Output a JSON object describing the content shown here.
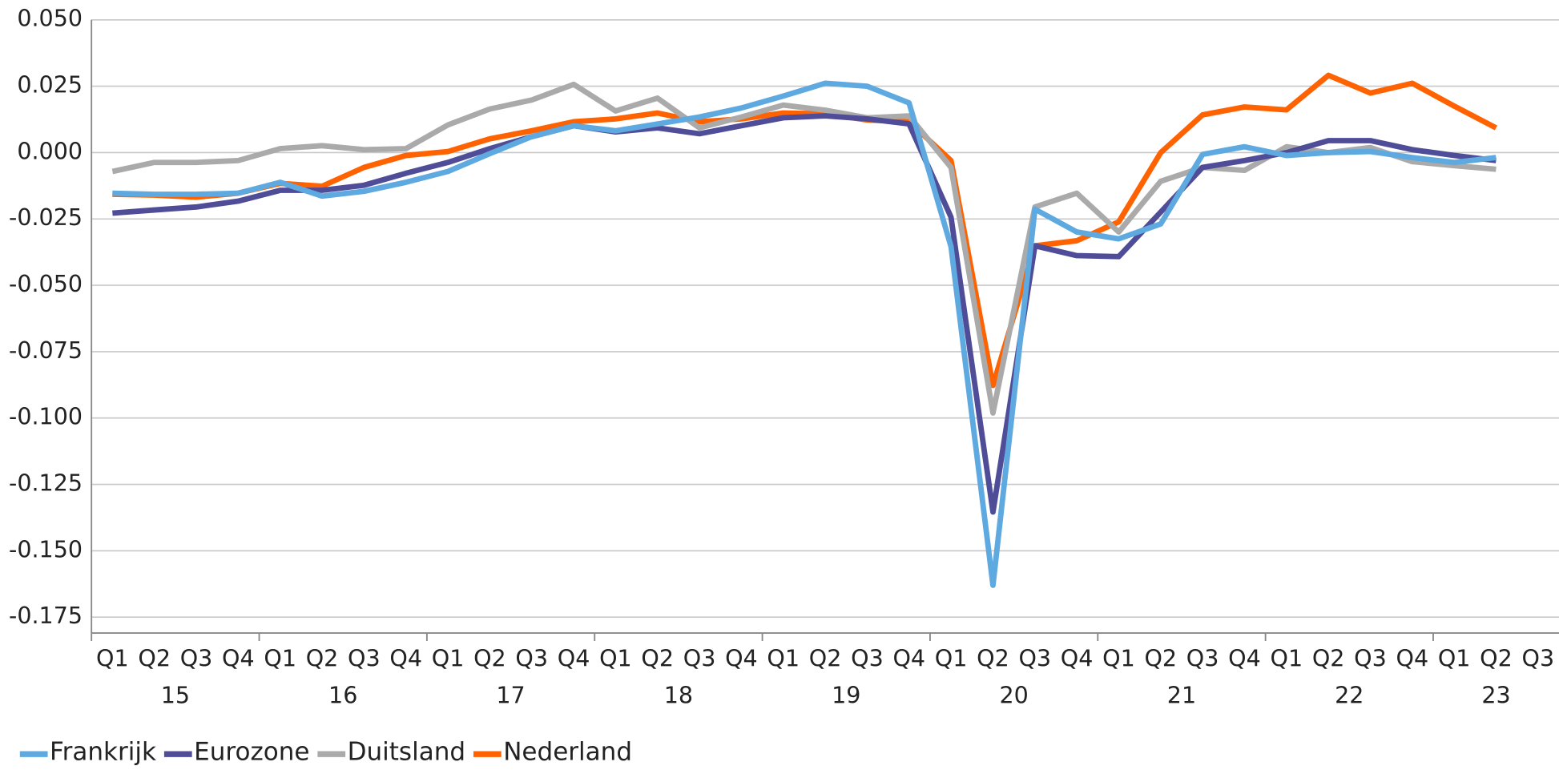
{
  "chart_data": {
    "type": "line",
    "categories": [
      "Q1",
      "Q2",
      "Q3",
      "Q4",
      "Q1",
      "Q2",
      "Q3",
      "Q4",
      "Q1",
      "Q2",
      "Q3",
      "Q4",
      "Q1",
      "Q2",
      "Q3",
      "Q4",
      "Q1",
      "Q2",
      "Q3",
      "Q4",
      "Q1",
      "Q2",
      "Q3",
      "Q4",
      "Q1",
      "Q2",
      "Q3",
      "Q4",
      "Q1",
      "Q2",
      "Q3",
      "Q4",
      "Q1",
      "Q2",
      "Q3"
    ],
    "year_groups": [
      "15",
      "16",
      "17",
      "18",
      "19",
      "20",
      "21",
      "22",
      "23"
    ],
    "ylim": [
      -0.181,
      0.05
    ],
    "yticks": [
      {
        "value": 0.05,
        "label": "0.050"
      },
      {
        "value": 0.025,
        "label": "0.025"
      },
      {
        "value": 0,
        "label": "0.000"
      },
      {
        "value": -0.025,
        "label": "-0.025"
      },
      {
        "value": -0.05,
        "label": "-0.050"
      },
      {
        "value": -0.075,
        "label": "-0.075"
      },
      {
        "value": -0.1,
        "label": "-0.100"
      },
      {
        "value": -0.125,
        "label": "-0.125"
      },
      {
        "value": -0.15,
        "label": "-0.150"
      },
      {
        "value": -0.175,
        "label": "-0.175"
      }
    ],
    "grid": true,
    "legend": "bottom-left",
    "series": [
      {
        "name": "Frankrijk",
        "color": "#5ea9e0",
        "values": [
          -0.0153,
          -0.0157,
          -0.0157,
          -0.0153,
          -0.0112,
          -0.0164,
          -0.0146,
          -0.0112,
          -0.0071,
          -0.0004,
          0.006,
          0.0101,
          0.0082,
          0.0108,
          0.0134,
          0.0168,
          0.0213,
          0.0261,
          0.025,
          0.0187,
          -0.0354,
          -0.163,
          -0.0213,
          -0.0299,
          -0.0325,
          -0.0269,
          -0.0007,
          0.0022,
          -0.0011,
          0,
          0.0004,
          -0.0019,
          -0.0037,
          -0.0019,
          null
        ]
      },
      {
        "name": "Eurozone",
        "color": "#4f4c98",
        "values": [
          -0.0228,
          -0.0216,
          -0.0205,
          -0.0183,
          -0.0142,
          -0.0142,
          -0.0123,
          -0.0078,
          -0.0037,
          0.0015,
          0.006,
          0.0101,
          0.0078,
          0.0093,
          0.0071,
          0.0101,
          0.0131,
          0.0138,
          0.0127,
          0.0108,
          -0.0243,
          -0.1354,
          -0.0351,
          -0.0388,
          -0.0392,
          -0.0224,
          -0.0056,
          -0.003,
          0,
          0.0045,
          0.0045,
          0.0011,
          -0.0011,
          -0.003,
          null
        ]
      },
      {
        "name": "Duitsland",
        "color": "#aaaaaa",
        "values": [
          -0.0071,
          -0.0037,
          -0.0037,
          -0.003,
          0.0015,
          0.0026,
          0.0011,
          0.0015,
          0.0104,
          0.0164,
          0.0198,
          0.0257,
          0.0157,
          0.0205,
          0.0093,
          0.0134,
          0.0179,
          0.016,
          0.0131,
          0.0138,
          -0.0056,
          -0.0981,
          -0.0205,
          -0.0153,
          -0.0299,
          -0.0108,
          -0.0056,
          -0.0067,
          0.0022,
          0,
          0.0019,
          -0.0034,
          -0.0049,
          -0.0063,
          null
        ]
      },
      {
        "name": "Nederland",
        "color": "#ff6200",
        "values": [
          -0.0157,
          -0.016,
          -0.0168,
          -0.0153,
          -0.0116,
          -0.0127,
          -0.0056,
          -0.0011,
          0.0004,
          0.0052,
          0.0082,
          0.0116,
          0.0127,
          0.0149,
          0.0116,
          0.0127,
          0.0149,
          0.0146,
          0.0123,
          0.0116,
          -0.003,
          -0.0877,
          -0.0351,
          -0.0332,
          -0.0261,
          0,
          0.0142,
          0.0172,
          0.0161,
          0.0291,
          0.0224,
          0.0261,
          0.0175,
          0.0093,
          null
        ]
      }
    ]
  }
}
